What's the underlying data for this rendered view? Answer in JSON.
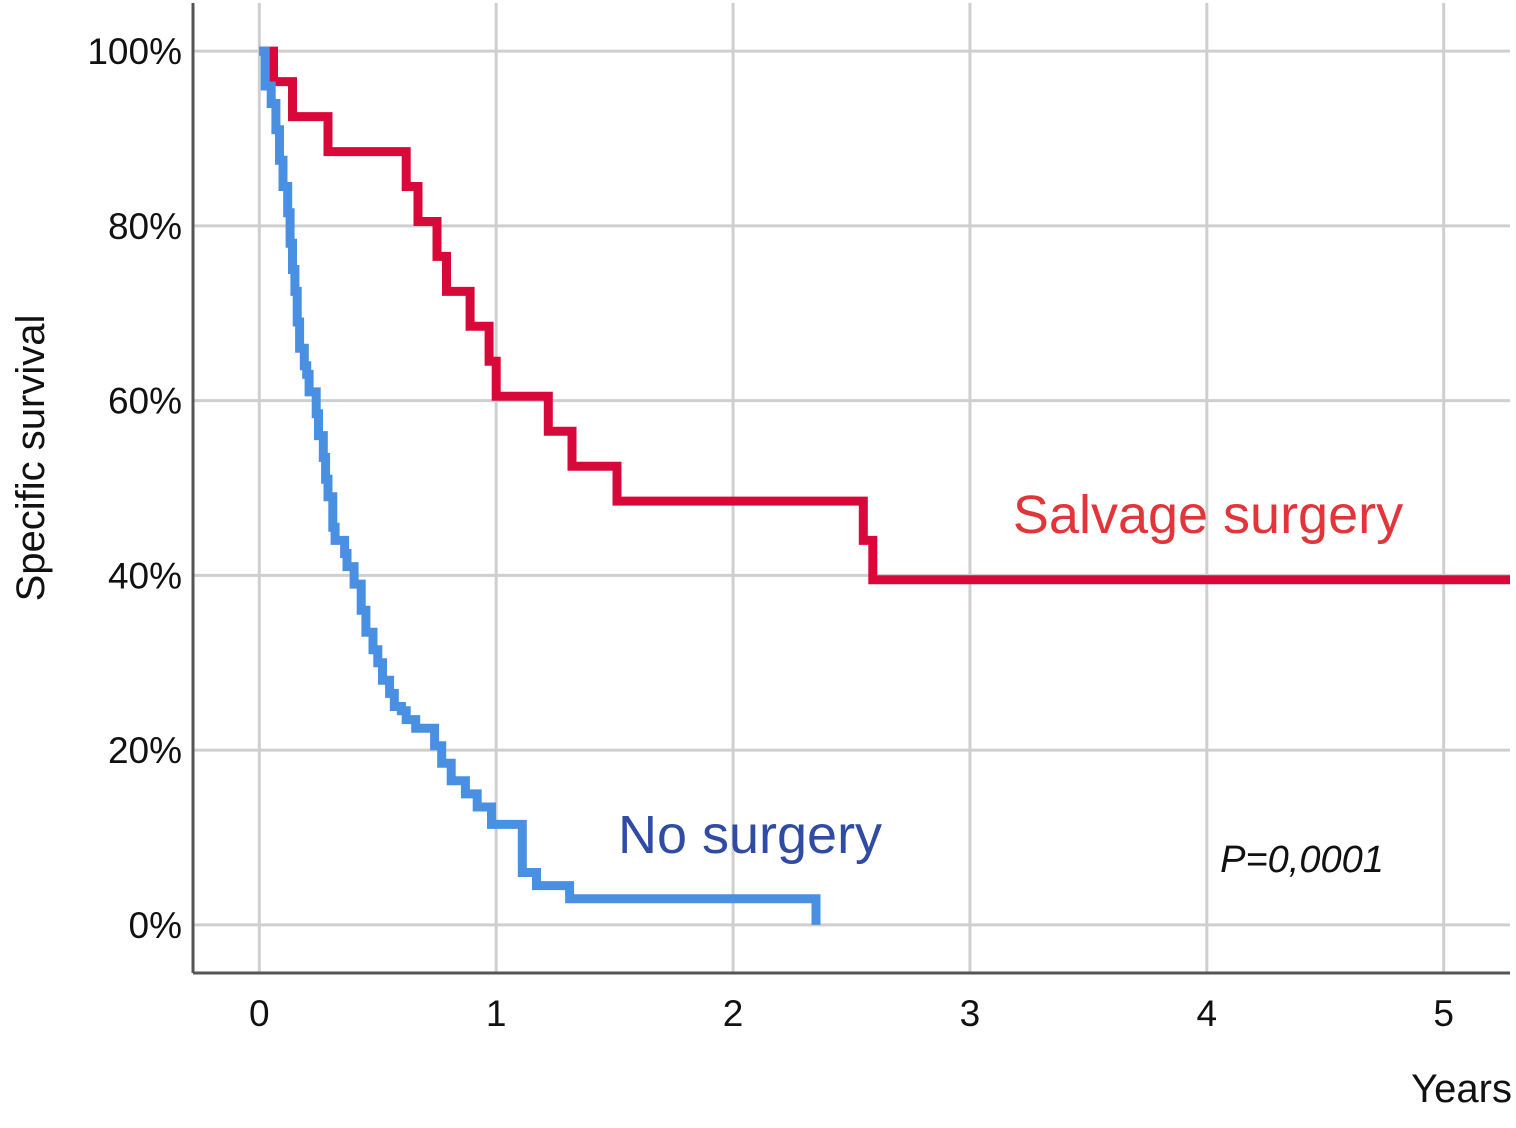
{
  "chart_data": {
    "type": "line",
    "subtype": "kaplan-meier step",
    "xlabel": "Years",
    "ylabel": "Specific survival",
    "xlim": [
      -0.28,
      5.28
    ],
    "ylim": [
      -0.055,
      1.055
    ],
    "x_ticks": [
      "0",
      "1",
      "2",
      "3",
      "4",
      "5"
    ],
    "x_tick_values": [
      0,
      1,
      2,
      3,
      4,
      5
    ],
    "y_ticks": [
      "0%",
      "20%",
      "40%",
      "60%",
      "80%",
      "100%"
    ],
    "y_tick_values": [
      0,
      0.2,
      0.4,
      0.6,
      0.8,
      1.0
    ],
    "grid": true,
    "annotation": "P=0,0001",
    "series": [
      {
        "name": "Salvage surgery",
        "color": "#d9083a",
        "label_color": "#e3343a",
        "x": [
          0,
          0.06,
          0.06,
          0.14,
          0.14,
          0.29,
          0.29,
          0.62,
          0.62,
          0.67,
          0.67,
          0.75,
          0.75,
          0.79,
          0.79,
          0.89,
          0.89,
          0.97,
          0.97,
          1.0,
          1.0,
          1.22,
          1.22,
          1.32,
          1.32,
          1.51,
          1.51,
          2.55,
          2.55,
          2.59,
          2.59,
          5.28
        ],
        "y": [
          1.0,
          1.0,
          0.965,
          0.965,
          0.925,
          0.925,
          0.885,
          0.885,
          0.845,
          0.845,
          0.805,
          0.805,
          0.765,
          0.765,
          0.725,
          0.725,
          0.685,
          0.685,
          0.645,
          0.645,
          0.605,
          0.605,
          0.565,
          0.565,
          0.525,
          0.525,
          0.485,
          0.485,
          0.44,
          0.44,
          0.395,
          0.395
        ]
      },
      {
        "name": "No surgery",
        "color": "#4a90e2",
        "label_color": "#2f4ba3",
        "x": [
          0,
          0.025,
          0.05,
          0.07,
          0.085,
          0.1,
          0.12,
          0.13,
          0.14,
          0.15,
          0.16,
          0.17,
          0.19,
          0.2,
          0.21,
          0.24,
          0.25,
          0.27,
          0.28,
          0.29,
          0.31,
          0.32,
          0.36,
          0.37,
          0.4,
          0.43,
          0.45,
          0.48,
          0.5,
          0.52,
          0.55,
          0.57,
          0.6,
          0.62,
          0.66,
          0.74,
          0.77,
          0.81,
          0.87,
          0.92,
          0.98,
          1.11,
          1.17,
          1.31,
          2.35
        ],
        "y": [
          1.0,
          0.96,
          0.94,
          0.91,
          0.875,
          0.845,
          0.815,
          0.78,
          0.75,
          0.725,
          0.69,
          0.66,
          0.64,
          0.63,
          0.61,
          0.585,
          0.56,
          0.535,
          0.51,
          0.49,
          0.455,
          0.44,
          0.425,
          0.41,
          0.39,
          0.36,
          0.335,
          0.315,
          0.3,
          0.28,
          0.265,
          0.25,
          0.245,
          0.235,
          0.225,
          0.205,
          0.185,
          0.165,
          0.15,
          0.135,
          0.115,
          0.06,
          0.045,
          0.03,
          0.0
        ]
      }
    ]
  }
}
